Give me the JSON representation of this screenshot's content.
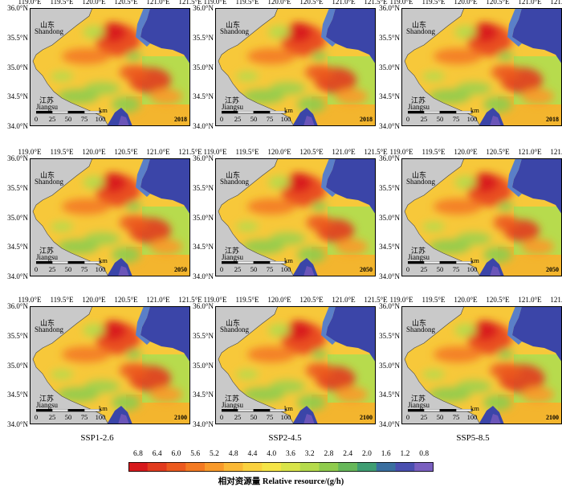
{
  "axes": {
    "x_ticks": [
      "119.0°E",
      "119.5°E",
      "120.0°E",
      "120.5°E",
      "121.0°E",
      "121.5°E"
    ],
    "y_ticks": [
      "36.0°N",
      "35.5°N",
      "35.0°N",
      "34.5°N",
      "34.0°N"
    ]
  },
  "places": {
    "shandong_cn": "山东",
    "shandong_en": "Shandong",
    "jiangsu_cn": "江苏",
    "jiangsu_en": "Jiangsu"
  },
  "scale_bar": {
    "ticks": [
      "0",
      "25",
      "50",
      "75",
      "100"
    ],
    "unit": "km"
  },
  "scenarios": [
    "SSP1-2.6",
    "SSP2-4.5",
    "SSP5-8.5"
  ],
  "years": [
    "2018",
    "2050",
    "2100"
  ],
  "legend": {
    "ticks": [
      "6.8",
      "6.4",
      "6.0",
      "5.6",
      "5.2",
      "4.8",
      "4.4",
      "4.0",
      "3.6",
      "3.2",
      "2.8",
      "2.4",
      "2.0",
      "1.6",
      "1.2",
      "0.8"
    ],
    "title": "相对资源量 Relative resource/(g/h)",
    "colors": [
      "#d7191c",
      "#e23b1e",
      "#ec5a1f",
      "#f47a22",
      "#f99a2a",
      "#fbb936",
      "#fbd23f",
      "#f5e547",
      "#d9e54a",
      "#b5db4b",
      "#8fcc4d",
      "#66b85a",
      "#3f9e73",
      "#3a6fa0",
      "#4a4fb0",
      "#7a5fc0"
    ]
  },
  "chart_data": [
    {
      "type": "heatmap",
      "scenario": "SSP1-2.6",
      "year": "2018",
      "xlim": [
        119.0,
        121.5
      ],
      "ylim": [
        34.0,
        36.0
      ],
      "intensity": 1.0
    },
    {
      "type": "heatmap",
      "scenario": "SSP2-4.5",
      "year": "2018",
      "xlim": [
        119.0,
        121.5
      ],
      "ylim": [
        34.0,
        36.0
      ],
      "intensity": 1.0
    },
    {
      "type": "heatmap",
      "scenario": "SSP5-8.5",
      "year": "2018",
      "xlim": [
        119.0,
        121.5
      ],
      "ylim": [
        34.0,
        36.0
      ],
      "intensity": 1.0
    },
    {
      "type": "heatmap",
      "scenario": "SSP1-2.6",
      "year": "2050",
      "xlim": [
        119.0,
        121.5
      ],
      "ylim": [
        34.0,
        36.0
      ],
      "intensity": 1.0
    },
    {
      "type": "heatmap",
      "scenario": "SSP2-4.5",
      "year": "2050",
      "xlim": [
        119.0,
        121.5
      ],
      "ylim": [
        34.0,
        36.0
      ],
      "intensity": 0.9
    },
    {
      "type": "heatmap",
      "scenario": "SSP5-8.5",
      "year": "2050",
      "xlim": [
        119.0,
        121.5
      ],
      "ylim": [
        34.0,
        36.0
      ],
      "intensity": 0.85
    },
    {
      "type": "heatmap",
      "scenario": "SSP1-2.6",
      "year": "2100",
      "xlim": [
        119.0,
        121.5
      ],
      "ylim": [
        34.0,
        36.0
      ],
      "intensity": 1.0
    },
    {
      "type": "heatmap",
      "scenario": "SSP2-4.5",
      "year": "2100",
      "xlim": [
        119.0,
        121.5
      ],
      "ylim": [
        34.0,
        36.0
      ],
      "intensity": 0.95
    },
    {
      "type": "heatmap",
      "scenario": "SSP5-8.5",
      "year": "2100",
      "xlim": [
        119.0,
        121.5
      ],
      "ylim": [
        34.0,
        36.0
      ],
      "intensity": 1.1
    }
  ]
}
